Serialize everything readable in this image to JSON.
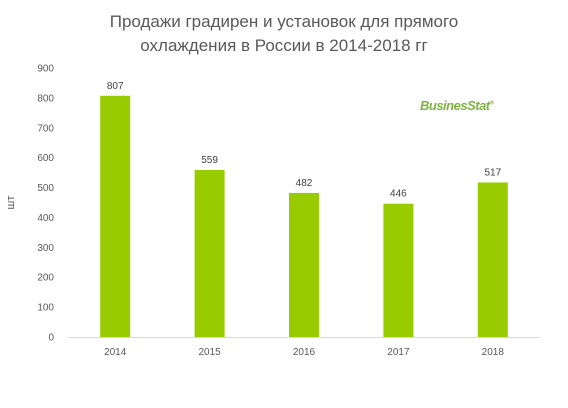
{
  "chart_data": {
    "type": "bar",
    "title_lines": [
      "Продажи градирен и установок для прямого",
      "охлаждения в России в 2014-2018 гг"
    ],
    "ylabel": "шт",
    "xlabel": "",
    "categories": [
      "2014",
      "2015",
      "2016",
      "2017",
      "2018"
    ],
    "values": [
      807,
      559,
      482,
      446,
      517
    ],
    "ylim": [
      0,
      900
    ],
    "yticks": [
      0,
      100,
      200,
      300,
      400,
      500,
      600,
      700,
      800,
      900
    ],
    "bar_color": "#99cc00",
    "grid": false,
    "legend": "none"
  },
  "watermark": {
    "text": "BusinesStat",
    "mark": "®"
  }
}
